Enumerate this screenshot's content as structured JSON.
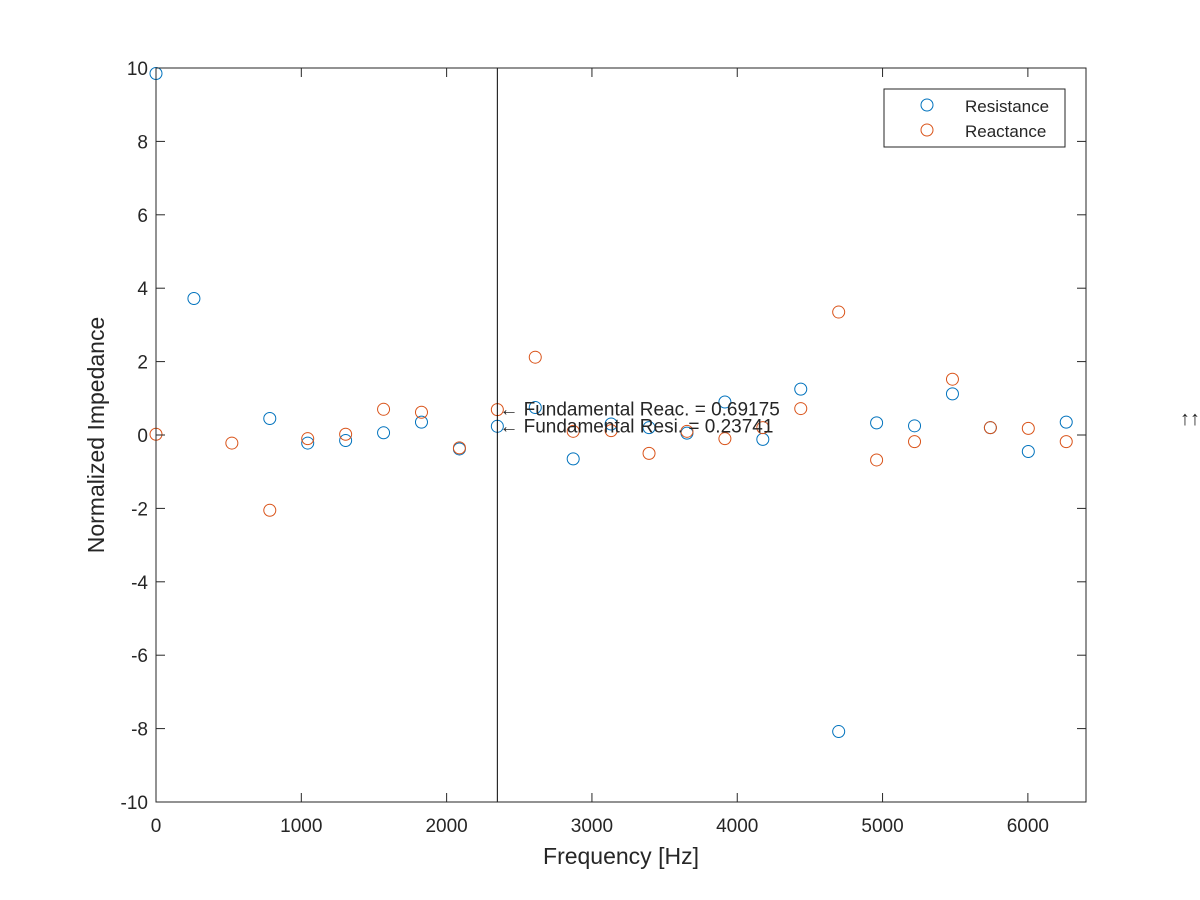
{
  "chart_data": {
    "type": "scatter",
    "xlabel": "Frequency [Hz]",
    "ylabel": "Normalized Impedance",
    "xlim": [
      0,
      6400
    ],
    "ylim": [
      -10,
      10
    ],
    "x_ticks": [
      0,
      1000,
      2000,
      3000,
      4000,
      5000,
      6000
    ],
    "y_ticks": [
      -10,
      -8,
      -6,
      -4,
      -2,
      0,
      2,
      4,
      6,
      8,
      10
    ],
    "grid": false,
    "legend_position": "top-right",
    "series": [
      {
        "name": "Resistance",
        "color": "#0072BD",
        "marker": "open-circle",
        "x": [
          0,
          261,
          783,
          1044,
          1305,
          1566,
          1827,
          2088,
          2349,
          2610,
          2871,
          3132,
          3393,
          3654,
          3915,
          4176,
          4437,
          4698,
          4959,
          5220,
          5481,
          5742,
          6003,
          6264
        ],
        "y": [
          9.85,
          3.72,
          0.45,
          -0.22,
          -0.15,
          0.06,
          0.35,
          -0.38,
          0.237,
          0.75,
          -0.65,
          0.3,
          0.2,
          0.05,
          0.9,
          -0.12,
          1.25,
          -8.08,
          0.33,
          0.25,
          1.12,
          0.2,
          -0.45,
          0.35
        ]
      },
      {
        "name": "Reactance",
        "color": "#D95319",
        "marker": "open-circle",
        "x": [
          0,
          522,
          783,
          1044,
          1305,
          1566,
          1827,
          2088,
          2349,
          2610,
          2871,
          3132,
          3393,
          3654,
          3915,
          4176,
          4437,
          4698,
          4959,
          5220,
          5481,
          5742,
          6003,
          6264
        ],
        "y": [
          0.02,
          -0.22,
          -2.05,
          -0.1,
          0.02,
          0.7,
          0.62,
          -0.35,
          0.692,
          2.12,
          0.1,
          0.12,
          -0.5,
          0.1,
          -0.1,
          0.2,
          0.72,
          3.35,
          -0.68,
          -0.18,
          1.52,
          0.2,
          0.18,
          -0.18
        ]
      }
    ],
    "reference_line": {
      "x": 2349
    },
    "annotations": [
      {
        "text": "← Fundamental Reac. = 0.69175",
        "x": 2349,
        "y": 0.69175
      },
      {
        "text": "← Fundamental Resi. = 0.23741",
        "x": 2349,
        "y": 0.23741
      }
    ],
    "stray_text": "↑↑"
  }
}
